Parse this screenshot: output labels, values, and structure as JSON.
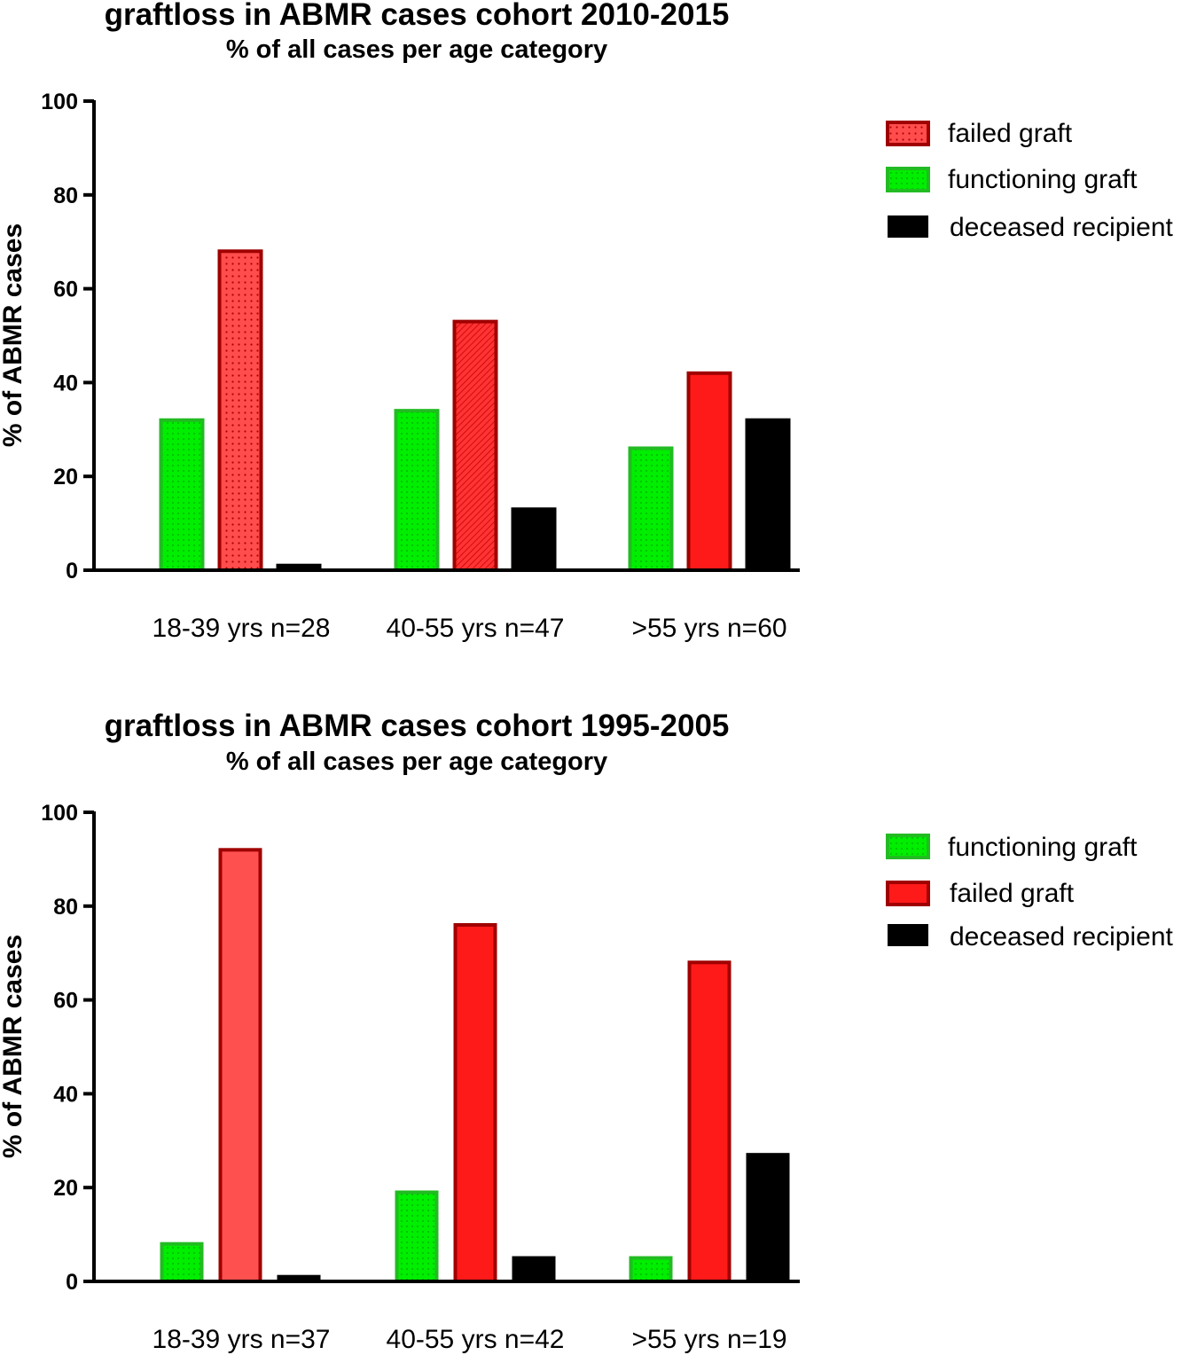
{
  "colors": {
    "functioning_fill": "#00ee00",
    "functioning_stroke": "#22bb22",
    "failed_fill": "#ff1a1a",
    "failed_fill_light": "#ff5050",
    "failed_stroke": "#a00000",
    "deceased_fill": "#000000"
  },
  "chart_data": [
    {
      "type": "bar",
      "title": "graftloss in ABMR cases cohort 2010-2015",
      "subtitle": "% of all cases per age category",
      "ylabel": "% of ABMR cases",
      "xlabel": "",
      "ylim": [
        0,
        100
      ],
      "yticks": [
        0,
        20,
        40,
        60,
        80,
        100
      ],
      "categories": [
        "18-39 yrs n=28",
        "40-55 yrs n=47",
        ">55 yrs n=60"
      ],
      "legend": [
        "failed graft",
        "functioning graft",
        "deceased recipient"
      ],
      "legend_position": "top-right",
      "series": [
        {
          "name": "functioning graft",
          "values": [
            32,
            34,
            26
          ]
        },
        {
          "name": "failed graft",
          "values": [
            68,
            53,
            42
          ]
        },
        {
          "name": "deceased recipient",
          "values": [
            1,
            13,
            32
          ]
        }
      ]
    },
    {
      "type": "bar",
      "title": "graftloss in ABMR cases cohort 1995-2005",
      "subtitle": "% of all cases per age category",
      "ylabel": "% of ABMR cases",
      "xlabel": "",
      "ylim": [
        0,
        100
      ],
      "yticks": [
        0,
        20,
        40,
        60,
        80,
        100
      ],
      "categories": [
        "18-39 yrs n=37",
        "40-55 yrs n=42",
        ">55 yrs n=19"
      ],
      "legend": [
        "functioning graft",
        "failed graft",
        "deceased recipient"
      ],
      "legend_position": "top-right",
      "series": [
        {
          "name": "functioning graft",
          "values": [
            8,
            19,
            5
          ]
        },
        {
          "name": "failed graft",
          "values": [
            92,
            76,
            68
          ]
        },
        {
          "name": "deceased recipient",
          "values": [
            1,
            5,
            27
          ]
        }
      ]
    }
  ]
}
